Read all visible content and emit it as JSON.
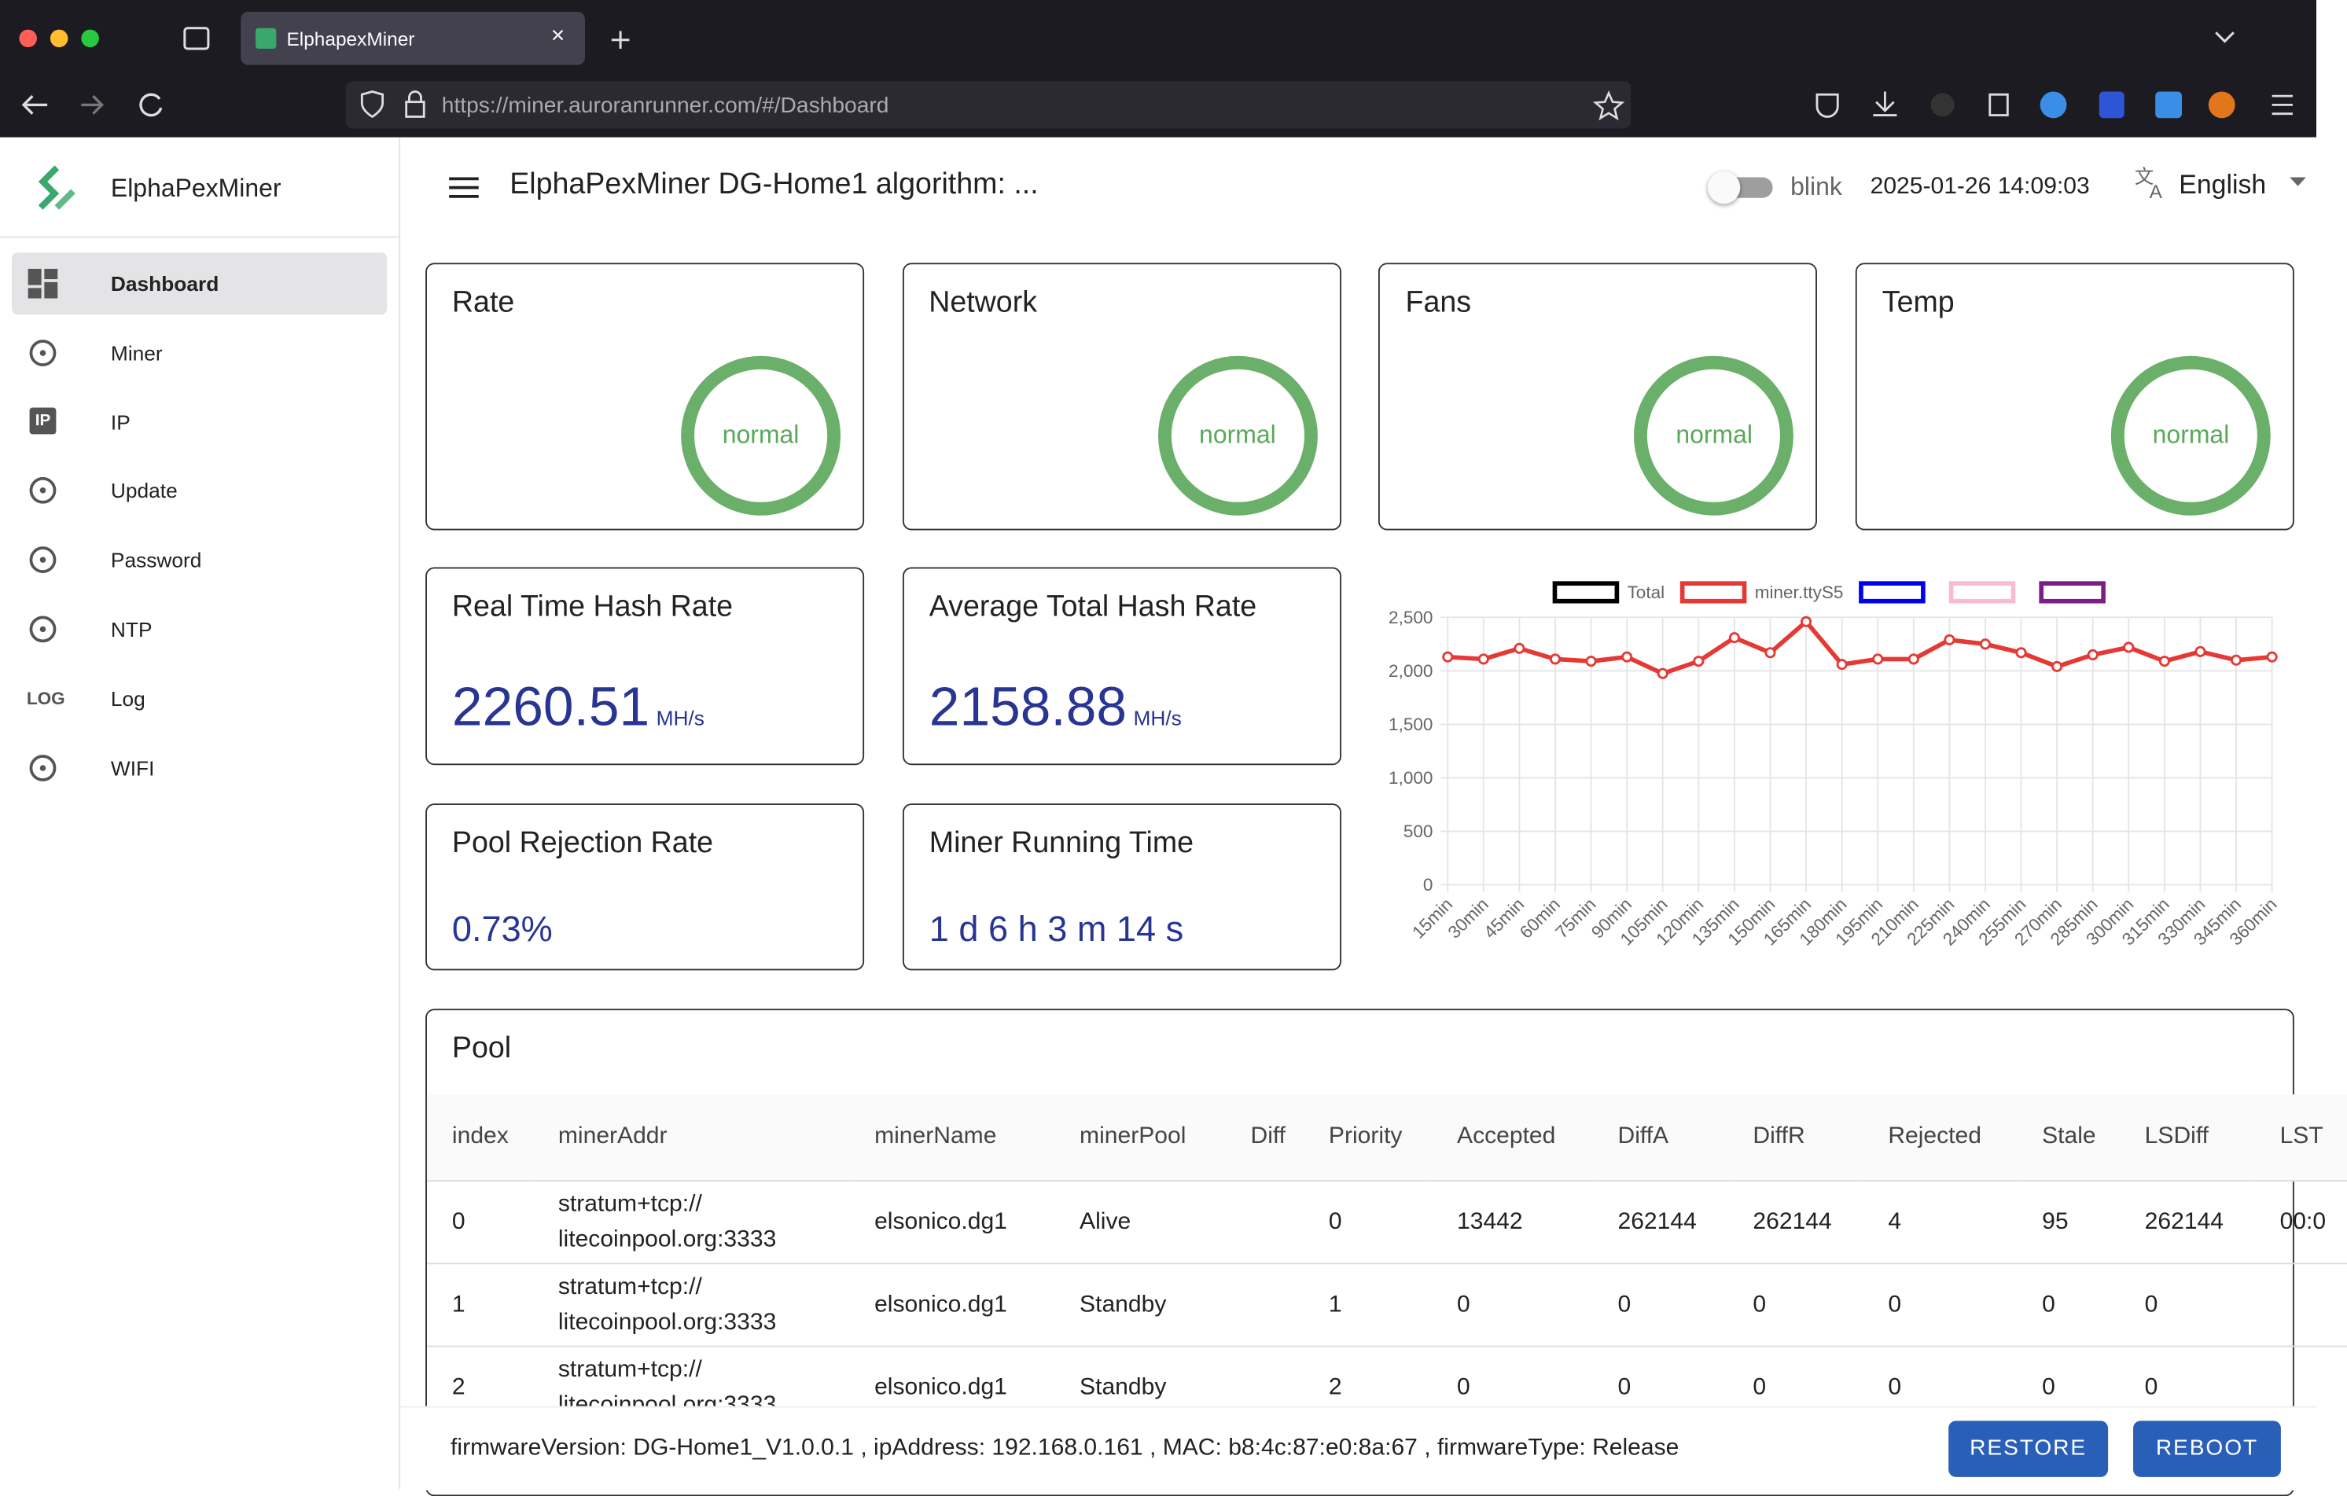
{
  "browser": {
    "tab_title": "ElphapexMiner",
    "url": "https://miner.auroranrunner.com/#/Dashboard"
  },
  "sidebar": {
    "brand": "ElphaPexMiner",
    "items": [
      {
        "label": "Dashboard"
      },
      {
        "label": "Miner"
      },
      {
        "label": "IP",
        "icon": "IP"
      },
      {
        "label": "Update"
      },
      {
        "label": "Password"
      },
      {
        "label": "NTP"
      },
      {
        "label": "Log",
        "icon": "LOG"
      },
      {
        "label": "WIFI"
      }
    ]
  },
  "header": {
    "title": "ElphaPexMiner DG-Home1 algorithm: ...",
    "blink": "blink",
    "datetime": "2025-01-26 14:09:03",
    "language": "English"
  },
  "status_cards": [
    {
      "title": "Rate",
      "status": "normal"
    },
    {
      "title": "Network",
      "status": "normal"
    },
    {
      "title": "Fans",
      "status": "normal"
    },
    {
      "title": "Temp",
      "status": "normal"
    }
  ],
  "stats": {
    "real_time": {
      "title": "Real Time Hash Rate",
      "value": "2260.51",
      "unit": "MH/s"
    },
    "average": {
      "title": "Average Total Hash Rate",
      "value": "2158.88",
      "unit": "MH/s"
    },
    "rejection": {
      "title": "Pool Rejection Rate",
      "value": "0.73%"
    },
    "running": {
      "title": "Miner Running Time",
      "value": "1 d 6 h 3 m 14 s"
    }
  },
  "chart_data": {
    "type": "line",
    "categories": [
      "15min",
      "30min",
      "45min",
      "60min",
      "75min",
      "90min",
      "105min",
      "120min",
      "135min",
      "150min",
      "165min",
      "180min",
      "195min",
      "210min",
      "225min",
      "240min",
      "255min",
      "270min",
      "285min",
      "300min",
      "315min",
      "330min",
      "345min",
      "360min"
    ],
    "series": [
      {
        "name": "Total",
        "color": "#000000",
        "values": [
          null,
          null,
          null,
          null,
          null,
          null,
          null,
          null,
          null,
          null,
          null,
          null,
          null,
          null,
          null,
          null,
          null,
          null,
          null,
          null,
          null,
          null,
          null,
          null
        ]
      },
      {
        "name": "miner.ttyS5",
        "color": "#e53935",
        "values": [
          2130,
          2110,
          2210,
          2110,
          2090,
          2130,
          1975,
          2090,
          2310,
          2170,
          2460,
          2060,
          2110,
          2110,
          2290,
          2250,
          2170,
          2040,
          2150,
          2220,
          2090,
          2180,
          2100,
          2130
        ]
      },
      {
        "color": "#0000ee",
        "values": [
          null,
          null,
          null,
          null,
          null,
          null,
          null,
          null,
          null,
          null,
          null,
          null,
          null,
          null,
          null,
          null,
          null,
          null,
          null,
          null,
          null,
          null,
          null,
          null
        ]
      },
      {
        "color": "#f8bbd0",
        "values": [
          null,
          null,
          null,
          null,
          null,
          null,
          null,
          null,
          null,
          null,
          null,
          null,
          null,
          null,
          null,
          null,
          null,
          null,
          null,
          null,
          null,
          null,
          null,
          null
        ]
      },
      {
        "color": "#7b1f86",
        "values": [
          null,
          null,
          null,
          null,
          null,
          null,
          null,
          null,
          null,
          null,
          null,
          null,
          null,
          null,
          null,
          null,
          null,
          null,
          null,
          null,
          null,
          null,
          null,
          null
        ]
      }
    ],
    "ylim": [
      0,
      2500
    ],
    "yticks": [
      0,
      500,
      {
        "value": 1000,
        "label": "1,000"
      },
      {
        "value": 1500,
        "label": "1,500"
      },
      {
        "value": 2000,
        "label": "2,000"
      },
      {
        "value": 2500,
        "label": "2,500"
      }
    ],
    "grid": true
  },
  "pool": {
    "title": "Pool",
    "columns": [
      "index",
      "minerAddr",
      "minerName",
      "minerPool",
      "Diff",
      "Priority",
      "Accepted",
      "DiffA",
      "DiffR",
      "Rejected",
      "Stale",
      "LSDiff",
      "LST"
    ],
    "rows": [
      [
        "0",
        "stratum+tcp://\nlitecoinpool.org:3333",
        "elsonico.dg1",
        "Alive",
        "",
        "0",
        "13442",
        "262144",
        "262144",
        "4",
        "95",
        "262144",
        "00:0"
      ],
      [
        "1",
        "stratum+tcp://\nlitecoinpool.org:3333",
        "elsonico.dg1",
        "Standby",
        "",
        "1",
        "0",
        "0",
        "0",
        "0",
        "0",
        "0",
        ""
      ],
      [
        "2",
        "stratum+tcp://\nlitecoinpool.org:3333",
        "elsonico.dg1",
        "Standby",
        "",
        "2",
        "0",
        "0",
        "0",
        "0",
        "0",
        "0",
        ""
      ]
    ]
  },
  "footer": {
    "info": "firmwareVersion: DG-Home1_V1.0.0.1 , ipAddress: 192.168.0.161 , MAC: b8:4c:87:e0:8a:67 , firmwareType: Release",
    "buttons": [
      "RESTORE",
      "REBOOT"
    ]
  }
}
